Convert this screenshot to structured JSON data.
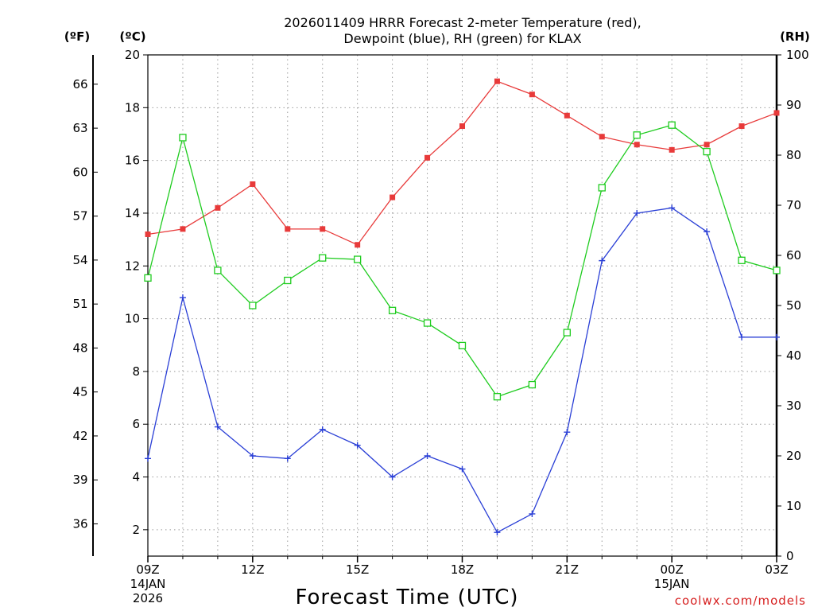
{
  "chart_data": {
    "type": "line",
    "title_line1": "2026011409 HRRR Forecast 2-meter Temperature (red),",
    "title_line2": "Dewpoint (blue), RH (green) for KLAX",
    "xlabel": "Forecast Time (UTC)",
    "credit": "coolwx.com/models",
    "unit_labels": {
      "fahrenheit": "(ºF)",
      "celsius": "(ºC)",
      "rh": "(RH)"
    },
    "xlim": [
      0,
      18
    ],
    "x_ticks": [
      {
        "x": 0,
        "label": "09Z",
        "sub1": "14JAN",
        "sub2": "2026"
      },
      {
        "x": 3,
        "label": "12Z",
        "sub1": "",
        "sub2": ""
      },
      {
        "x": 6,
        "label": "15Z",
        "sub1": "",
        "sub2": ""
      },
      {
        "x": 9,
        "label": "18Z",
        "sub1": "",
        "sub2": ""
      },
      {
        "x": 12,
        "label": "21Z",
        "sub1": "",
        "sub2": ""
      },
      {
        "x": 15,
        "label": "00Z",
        "sub1": "15JAN",
        "sub2": ""
      },
      {
        "x": 18,
        "label": "03Z",
        "sub1": "",
        "sub2": ""
      }
    ],
    "celsius_axis": {
      "range": [
        1,
        20
      ],
      "ticks": [
        2,
        4,
        6,
        8,
        10,
        12,
        14,
        16,
        18,
        20
      ]
    },
    "fahrenheit_axis": {
      "ticks": [
        36,
        39,
        42,
        45,
        48,
        51,
        54,
        57,
        60,
        63,
        66
      ]
    },
    "rh_axis": {
      "range": [
        0,
        100
      ],
      "ticks": [
        0,
        10,
        20,
        30,
        40,
        50,
        60,
        70,
        80,
        90,
        100
      ]
    },
    "grid": true,
    "series": [
      {
        "key": "temperature",
        "color": "#e83a3a",
        "marker": "filled-square",
        "axis": "celsius",
        "values": [
          13.2,
          13.4,
          14.2,
          15.1,
          13.4,
          13.4,
          12.8,
          14.6,
          16.1,
          17.3,
          19.0,
          18.5,
          17.7,
          16.9,
          16.6,
          16.4,
          16.6,
          17.3,
          17.8
        ]
      },
      {
        "key": "dewpoint",
        "color": "#2a3fd6",
        "marker": "plus",
        "axis": "celsius",
        "values": [
          4.7,
          10.8,
          5.9,
          4.8,
          4.7,
          5.8,
          5.2,
          4.0,
          4.8,
          4.3,
          1.9,
          2.6,
          5.7,
          12.2,
          14.0,
          14.2,
          13.3,
          9.3,
          9.3
        ]
      },
      {
        "key": "rh",
        "color": "#1fcc1f",
        "marker": "open-square",
        "axis": "rh",
        "values": [
          55.5,
          83.5,
          57,
          50,
          55,
          59.5,
          59.2,
          49,
          46.5,
          42,
          31.8,
          34.2,
          44.6,
          73.5,
          84,
          86,
          80.7,
          59,
          57
        ]
      }
    ]
  }
}
